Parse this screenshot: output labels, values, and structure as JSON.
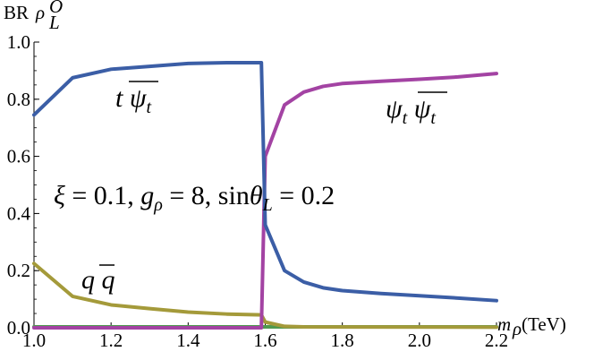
{
  "chart_data": {
    "type": "line",
    "title": "",
    "xlabel": "m_ρ(TeV)",
    "ylabel": "BR ρ_L^O",
    "xlim": [
      1.0,
      2.2
    ],
    "ylim": [
      0.0,
      1.0
    ],
    "xticks": [
      "1.0",
      "1.2",
      "1.4",
      "1.6",
      "1.8",
      "2.0",
      "2.2"
    ],
    "yticks": [
      "0.0",
      "0.2",
      "0.4",
      "0.6",
      "0.8",
      "1.0"
    ],
    "annotation": "ξ = 0.1,  g_ρ = 8,  sinθ_L = 0.2",
    "series": [
      {
        "name": "t ψ̄_t",
        "color": "#3b5ea6",
        "x": [
          1.0,
          1.1,
          1.2,
          1.3,
          1.4,
          1.5,
          1.59,
          1.6,
          1.65,
          1.7,
          1.75,
          1.8,
          1.9,
          2.0,
          2.1,
          2.2
        ],
        "y": [
          0.745,
          0.875,
          0.905,
          0.915,
          0.925,
          0.928,
          0.928,
          0.36,
          0.2,
          0.16,
          0.14,
          0.13,
          0.12,
          0.112,
          0.104,
          0.095
        ]
      },
      {
        "name": "ψ_t ψ̄_t",
        "color": "#a343a3",
        "x": [
          1.0,
          1.3,
          1.59,
          1.6,
          1.65,
          1.7,
          1.75,
          1.8,
          1.9,
          2.0,
          2.1,
          2.2
        ],
        "y": [
          0.0,
          0.0,
          0.0,
          0.6,
          0.78,
          0.825,
          0.845,
          0.855,
          0.863,
          0.87,
          0.878,
          0.89
        ]
      },
      {
        "name": "q q̄",
        "color": "#a49a3a",
        "x": [
          1.0,
          1.1,
          1.2,
          1.3,
          1.4,
          1.5,
          1.59,
          1.6,
          1.65,
          1.7,
          2.2
        ],
        "y": [
          0.225,
          0.11,
          0.08,
          0.067,
          0.055,
          0.048,
          0.045,
          0.02,
          0.005,
          0.003,
          0.002
        ]
      },
      {
        "name": "",
        "color": "#4f9a4f",
        "x": [
          1.0,
          2.2
        ],
        "y": [
          0.003,
          0.003
        ]
      }
    ]
  }
}
